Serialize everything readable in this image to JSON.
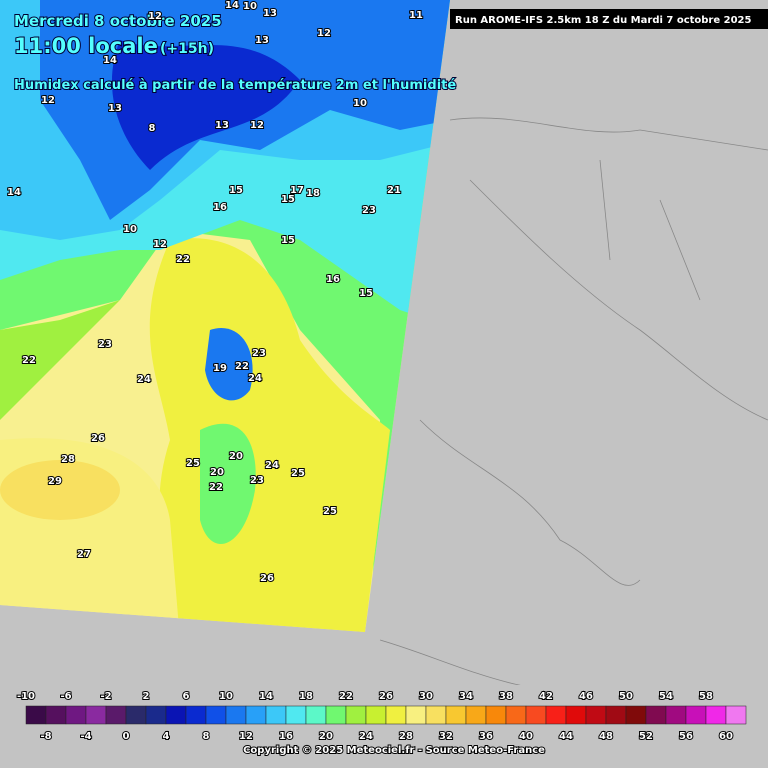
{
  "header": {
    "date": "Mercredi 8 octobre 2025",
    "time": "11:00 locale",
    "lead": "(+15h)",
    "description": "Humidex calculé à partir de la température 2m et l'humidité",
    "run": "Run AROME-IFS 2.5km 18 Z du Mardi 7 octobre 2025"
  },
  "map_labels": [
    12,
    14,
    10,
    13,
    12,
    13,
    11,
    12,
    13,
    14,
    10,
    14,
    10,
    12,
    8,
    13,
    12,
    15,
    16,
    17,
    18,
    15,
    15,
    22,
    21,
    23,
    16,
    15,
    22,
    23,
    24,
    23,
    19,
    22,
    24,
    26,
    28,
    29,
    27,
    25,
    20,
    24,
    25,
    23,
    22,
    25,
    26,
    20
  ],
  "colorbar": {
    "values": [
      -10,
      -8,
      -6,
      -4,
      -2,
      0,
      2,
      4,
      6,
      8,
      10,
      12,
      14,
      16,
      18,
      20,
      22,
      24,
      26,
      28,
      30,
      32,
      34,
      36,
      38,
      40,
      42,
      44,
      46,
      48,
      50,
      52,
      54,
      56,
      58,
      60
    ],
    "colors": [
      "#3a0a48",
      "#55105e",
      "#6f1882",
      "#8a2aa0",
      "#5a1a6a",
      "#2a2a6a",
      "#1a2a8c",
      "#0a14b4",
      "#0a2ad0",
      "#1050e8",
      "#1a78f0",
      "#28a0f8",
      "#3cc8f8",
      "#50e8f0",
      "#5cf8c8",
      "#70f870",
      "#a0f040",
      "#c8f030",
      "#f0f040",
      "#f8f080",
      "#f8e060",
      "#f8c830",
      "#f8a818",
      "#f8880a",
      "#f86818",
      "#f84a20",
      "#f82018",
      "#e00a0a",
      "#c00a14",
      "#a00a14",
      "#800a0a",
      "#800a50",
      "#a00a80",
      "#c810b8",
      "#f028e8",
      "#f078f0"
    ]
  },
  "footer": {
    "copyright": "Copyright © 2025 Meteociel.fr - Source Meteo-France"
  }
}
